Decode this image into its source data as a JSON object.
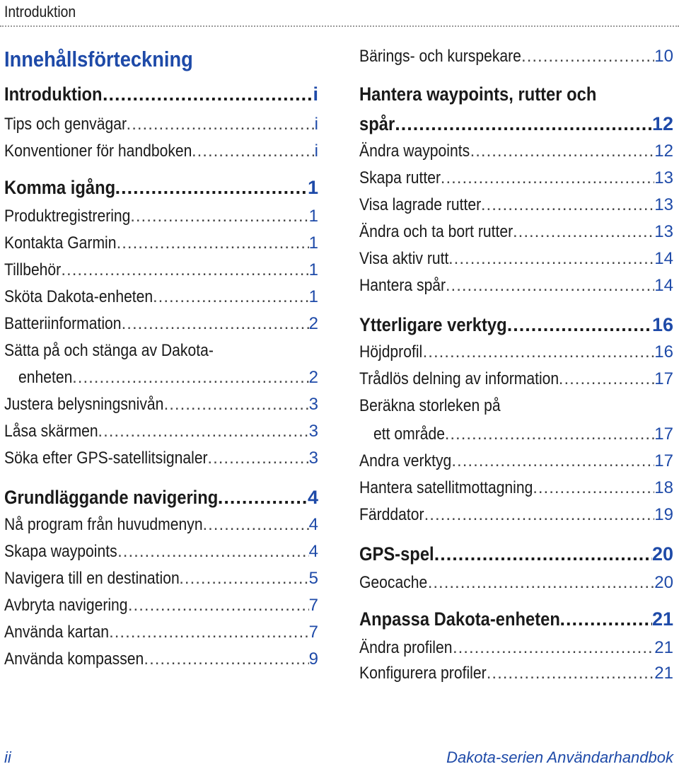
{
  "header": {
    "label": "Introduktion"
  },
  "toc_title": "Innehållsförteckning",
  "left_column": [
    {
      "kind": "section",
      "title": "Introduktion",
      "page": "i"
    },
    {
      "kind": "item",
      "title": "Tips och genvägar",
      "page": "i"
    },
    {
      "kind": "item",
      "title": "Konventioner för handboken",
      "page": "i"
    },
    {
      "kind": "section",
      "title": "Komma igång",
      "page": "1"
    },
    {
      "kind": "item",
      "title": "Produktregistrering",
      "page": "1"
    },
    {
      "kind": "item",
      "title": "Kontakta Garmin",
      "page": "1"
    },
    {
      "kind": "item",
      "title": "Tillbehör",
      "page": "1"
    },
    {
      "kind": "item",
      "title": "Sköta Dakota-enheten",
      "page": "1"
    },
    {
      "kind": "item",
      "title": "Batteriinformation",
      "page": "2"
    },
    {
      "kind": "continuation",
      "title": "Sätta på och stänga av Dakota-"
    },
    {
      "kind": "item",
      "title": "enheten",
      "page": "2",
      "indent": true
    },
    {
      "kind": "item",
      "title": "Justera belysningsnivån",
      "page": "3"
    },
    {
      "kind": "item",
      "title": "Låsa skärmen",
      "page": "3"
    },
    {
      "kind": "item",
      "title": "Söka efter GPS-satellitsignaler",
      "page": "3"
    },
    {
      "kind": "section",
      "title": "Grundläggande navigering",
      "page": "4"
    },
    {
      "kind": "item",
      "title": "Nå program från huvudmenyn",
      "page": "4"
    },
    {
      "kind": "item",
      "title": "Skapa waypoints",
      "page": "4"
    },
    {
      "kind": "item",
      "title": "Navigera till en destination",
      "page": "5"
    },
    {
      "kind": "item",
      "title": "Avbryta navigering",
      "page": "7"
    },
    {
      "kind": "item",
      "title": "Använda kartan",
      "page": "7"
    },
    {
      "kind": "item",
      "title": "Använda kompassen",
      "page": "9"
    }
  ],
  "right_column": [
    {
      "kind": "item",
      "title": "Bärings- och kurspekare",
      "page": "10"
    },
    {
      "kind": "continuation_section",
      "title": "Hantera waypoints, rutter och"
    },
    {
      "kind": "section",
      "title": "spår",
      "page": "12"
    },
    {
      "kind": "item",
      "title": "Ändra waypoints",
      "page": "12"
    },
    {
      "kind": "item",
      "title": "Skapa rutter",
      "page": "13"
    },
    {
      "kind": "item",
      "title": "Visa lagrade rutter",
      "page": "13"
    },
    {
      "kind": "item",
      "title": "Ändra och ta bort rutter",
      "page": "13"
    },
    {
      "kind": "item",
      "title": "Visa aktiv rutt",
      "page": "14"
    },
    {
      "kind": "item",
      "title": "Hantera spår",
      "page": "14"
    },
    {
      "kind": "section",
      "title": "Ytterligare verktyg",
      "page": "16"
    },
    {
      "kind": "item",
      "title": "Höjdprofil",
      "page": "16"
    },
    {
      "kind": "item",
      "title": "Trådlös delning av information",
      "page": "17"
    },
    {
      "kind": "continuation",
      "title": "Beräkna storleken på"
    },
    {
      "kind": "item",
      "title": "ett område",
      "page": "17",
      "indent": true
    },
    {
      "kind": "item",
      "title": "Andra verktyg",
      "page": "17"
    },
    {
      "kind": "item",
      "title": "Hantera satellitmottagning",
      "page": "18"
    },
    {
      "kind": "item",
      "title": "Färddator",
      "page": "19"
    },
    {
      "kind": "section",
      "title": "GPS-spel",
      "page": "20"
    },
    {
      "kind": "item",
      "title": "Geocache",
      "page": "20"
    },
    {
      "kind": "section",
      "title": "Anpassa Dakota-enheten",
      "page": "21"
    },
    {
      "kind": "item",
      "title": "Ändra profilen",
      "page": "21"
    },
    {
      "kind": "item",
      "title": "Konfigurera profiler",
      "page": "21"
    }
  ],
  "footer": {
    "page_number": "ii",
    "manual_title": "Dakota-serien Användarhandbok"
  }
}
